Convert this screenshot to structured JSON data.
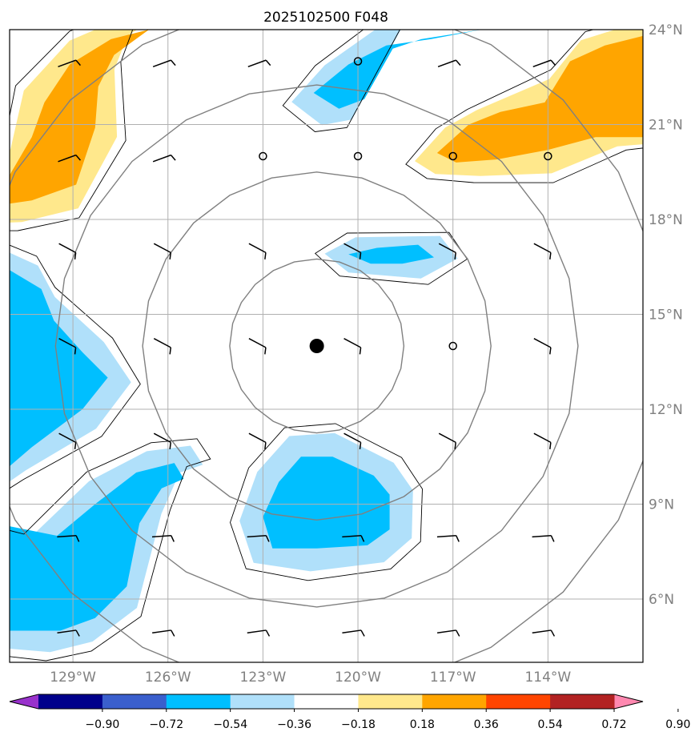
{
  "title": "2025102500 F048",
  "chart_data": {
    "type": "heatmap",
    "title": "2025102500 F048",
    "projection_extent": {
      "lon": [
        -131.0,
        -111.0
      ],
      "lat": [
        4.0,
        24.0
      ]
    },
    "x_ticks": [
      {
        "value": -129,
        "label": "129°W"
      },
      {
        "value": -126,
        "label": "126°W"
      },
      {
        "value": -123,
        "label": "123°W"
      },
      {
        "value": -120,
        "label": "120°W"
      },
      {
        "value": -117,
        "label": "117°W"
      },
      {
        "value": -114,
        "label": "114°W"
      }
    ],
    "y_ticks": [
      {
        "value": 24,
        "label": "24°N"
      },
      {
        "value": 21,
        "label": "21°N"
      },
      {
        "value": 18,
        "label": "18°N"
      },
      {
        "value": 15,
        "label": "15°N"
      },
      {
        "value": 12,
        "label": "12°N"
      },
      {
        "value": 9,
        "label": "9°N"
      },
      {
        "value": 6,
        "label": "6°N"
      }
    ],
    "grid": true,
    "center": {
      "lon": -121.3,
      "lat": 14.0
    },
    "range_rings_deg": [
      2.75,
      5.5,
      8.25,
      11.0
    ],
    "colorbar": {
      "levels": [
        "−0.90",
        "−0.72",
        "−0.54",
        "−0.36",
        "−0.18",
        "0.18",
        "0.36",
        "0.54",
        "0.72",
        "0.90"
      ],
      "colors": [
        "#9932cc",
        "#00008b",
        "#3a5fcd",
        "#00bfff",
        "#b0e0fa",
        "#ffffff",
        "#ffe88c",
        "#ffa500",
        "#ff4500",
        "#b22222",
        "#ff88b0"
      ],
      "extend": "both"
    },
    "shaded_regions": [
      {
        "name": "NW orange band",
        "level": 0.54,
        "color": "#ffa500",
        "points": [
          [
            -131,
            19.4
          ],
          [
            -130.3,
            20.6
          ],
          [
            -129.9,
            21.7
          ],
          [
            -129.1,
            22.9
          ],
          [
            -127.8,
            23.7
          ],
          [
            -126.6,
            24
          ],
          [
            -127.7,
            23.2
          ],
          [
            -128.2,
            22.2
          ],
          [
            -128.3,
            20.9
          ],
          [
            -128.9,
            19.1
          ],
          [
            -130.3,
            18.6
          ],
          [
            -131,
            18.5
          ]
        ]
      },
      {
        "name": "NE orange band",
        "level": 0.54,
        "color": "#ffa500",
        "points": [
          [
            -117.5,
            20.1
          ],
          [
            -116.5,
            21.0
          ],
          [
            -115.5,
            21.4
          ],
          [
            -114.1,
            21.7
          ],
          [
            -113.3,
            23.0
          ],
          [
            -112.2,
            23.5
          ],
          [
            -111,
            23.8
          ],
          [
            -111,
            20.6
          ],
          [
            -112.5,
            20.6
          ],
          [
            -114.0,
            20.2
          ],
          [
            -115.6,
            19.9
          ],
          [
            -116.9,
            19.8
          ]
        ]
      },
      {
        "name": "North cyan",
        "level": -0.54,
        "color": "#00bfff",
        "points": [
          [
            -121.4,
            22.0
          ],
          [
            -120.3,
            22.9
          ],
          [
            -119.1,
            23.5
          ],
          [
            -117.7,
            23.7
          ],
          [
            -116.1,
            24
          ],
          [
            -118.0,
            23.7
          ],
          [
            -118.9,
            23.4
          ],
          [
            -119.8,
            21.8
          ],
          [
            -120.6,
            21.5
          ]
        ]
      },
      {
        "name": "Center cyan",
        "level": -0.54,
        "color": "#00bfff",
        "points": [
          [
            -120.3,
            16.9
          ],
          [
            -119.4,
            17.1
          ],
          [
            -118.1,
            17.2
          ],
          [
            -117.6,
            16.8
          ],
          [
            -118.6,
            16.6
          ],
          [
            -119.6,
            16.6
          ]
        ]
      },
      {
        "name": "West cyan",
        "level": -0.54,
        "color": "#00bfff",
        "points": [
          [
            -131,
            16.4
          ],
          [
            -130.0,
            15.8
          ],
          [
            -129.6,
            14.8
          ],
          [
            -128.7,
            13.8
          ],
          [
            -127.9,
            13.0
          ],
          [
            -128.7,
            12.0
          ],
          [
            -130.3,
            10.8
          ],
          [
            -131,
            10.2
          ]
        ]
      },
      {
        "name": "South cyan",
        "level": -0.54,
        "color": "#00bfff",
        "points": [
          [
            -131,
            8.3
          ],
          [
            -129.5,
            8.0
          ],
          [
            -128.3,
            9.0
          ],
          [
            -127.0,
            10.0
          ],
          [
            -125.8,
            10.3
          ],
          [
            -125.5,
            9.8
          ],
          [
            -126.2,
            9.5
          ],
          [
            -126.9,
            8.4
          ],
          [
            -127.3,
            6.4
          ],
          [
            -128.3,
            5.4
          ],
          [
            -129.4,
            5.0
          ],
          [
            -131,
            5.0
          ]
        ]
      },
      {
        "name": "Southeast cyan",
        "level": -0.54,
        "color": "#00bfff",
        "points": [
          [
            -123.0,
            8.6
          ],
          [
            -122.5,
            9.7
          ],
          [
            -121.8,
            10.5
          ],
          [
            -120.8,
            10.5
          ],
          [
            -119.5,
            9.9
          ],
          [
            -119.0,
            9.3
          ],
          [
            -119.0,
            8.2
          ],
          [
            -119.7,
            7.7
          ],
          [
            -121.3,
            7.6
          ],
          [
            -122.7,
            7.6
          ]
        ]
      }
    ],
    "wind_barbs_lon": [
      -129,
      -126,
      -123,
      -120,
      -117,
      -114
    ],
    "wind_barbs_lat": [
      23,
      20,
      17,
      14,
      11,
      8,
      5
    ],
    "calm_points": [
      {
        "lon": -120,
        "lat": 23
      },
      {
        "lon": -123,
        "lat": 20
      },
      {
        "lon": -120,
        "lat": 20
      },
      {
        "lon": -117,
        "lat": 20
      },
      {
        "lon": -114,
        "lat": 20
      },
      {
        "lon": -117,
        "lat": 14
      }
    ]
  }
}
